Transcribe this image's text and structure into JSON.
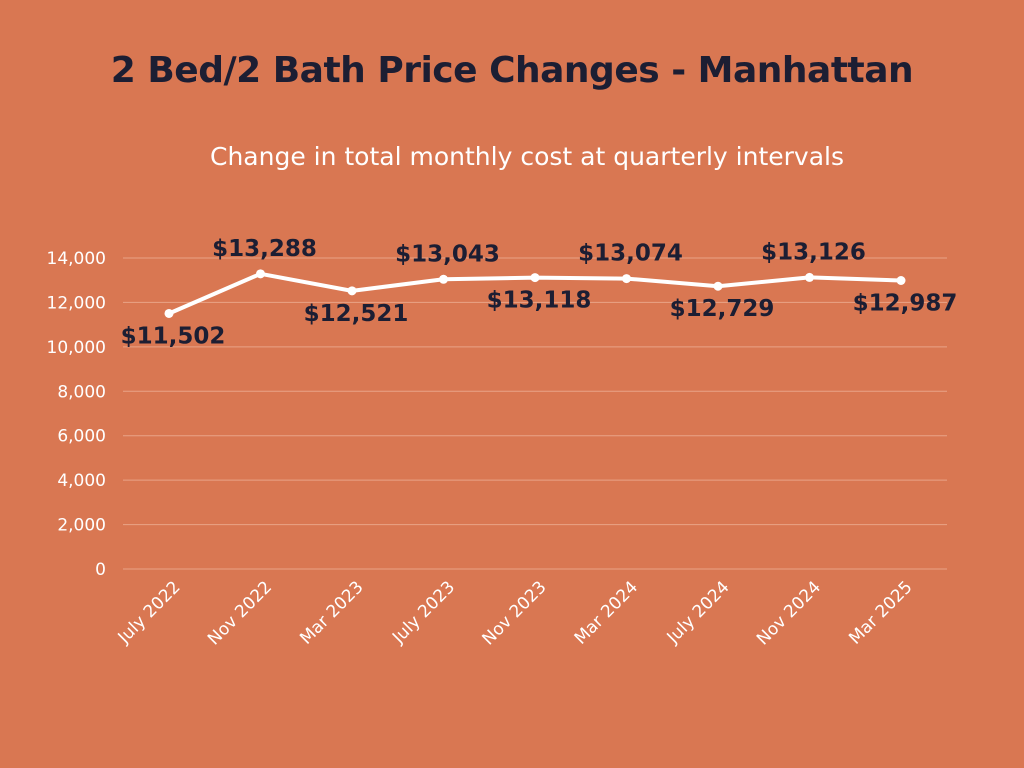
{
  "chart_data": {
    "type": "line",
    "title": "2 Bed/2 Bath Price Changes - Manhattan",
    "subtitle": "Change in total monthly cost at quarterly intervals",
    "categories": [
      "July 2022",
      "Nov 2022",
      "Mar 2023",
      "July 2023",
      "Nov 2023",
      "Mar 2024",
      "July 2024",
      "Nov 2024",
      "Mar 2025"
    ],
    "series": [
      {
        "name": "Total monthly cost",
        "values": [
          11502,
          13288,
          12521,
          13043,
          13118,
          13074,
          12729,
          13126,
          12987
        ],
        "labels": [
          "$11,502",
          "$13,288",
          "$12,521",
          "$13,043",
          "$13,118",
          "$13,074",
          "$12,729",
          "$13,126",
          "$12,987"
        ],
        "label_positions": [
          "below",
          "above",
          "below",
          "above",
          "below",
          "above",
          "below",
          "above",
          "below"
        ]
      }
    ],
    "yticks": [
      "0",
      "2,000",
      "4,000",
      "6,000",
      "8,000",
      "10,000",
      "12,000",
      "14,000"
    ],
    "ylim": [
      0,
      14000
    ],
    "xlabel": "",
    "ylabel": "",
    "grid": true,
    "colors": {
      "background": "#D97752",
      "line": "#FFFFFF",
      "grid": "#E9A387",
      "label": "#1C1E33",
      "tick": "#FFFFFF"
    }
  }
}
